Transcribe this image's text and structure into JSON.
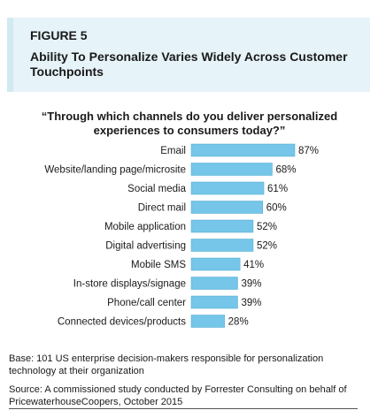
{
  "figure": {
    "label": "FIGURE 5",
    "title": "Ability To Personalize Varies Widely Across Customer Touchpoints"
  },
  "chart_data": {
    "type": "bar",
    "orientation": "horizontal",
    "title": "“Through which channels do you deliver personalized experiences to consumers today?”",
    "categories": [
      "Email",
      "Website/landing page/microsite",
      "Social media",
      "Direct mail",
      "Mobile application",
      "Digital advertising",
      "Mobile SMS",
      "In-store displays/signage",
      "Phone/call center",
      "Connected devices/products"
    ],
    "values": [
      87,
      68,
      61,
      60,
      52,
      52,
      41,
      39,
      39,
      28
    ],
    "value_labels": [
      "87%",
      "68%",
      "61%",
      "60%",
      "52%",
      "52%",
      "41%",
      "39%",
      "39%",
      "28%"
    ],
    "xlim": [
      0,
      100
    ],
    "bar_color": "#75c6e8",
    "bar_border": "#4aa8d0",
    "grid": false,
    "legend": "none"
  },
  "notes": {
    "base": "Base: 101 US enterprise decision-makers responsible for personalization technology at their organization",
    "source": "Source: A commissioned study conducted by Forrester Consulting on behalf of PricewaterhouseCoopers, October 2015"
  }
}
